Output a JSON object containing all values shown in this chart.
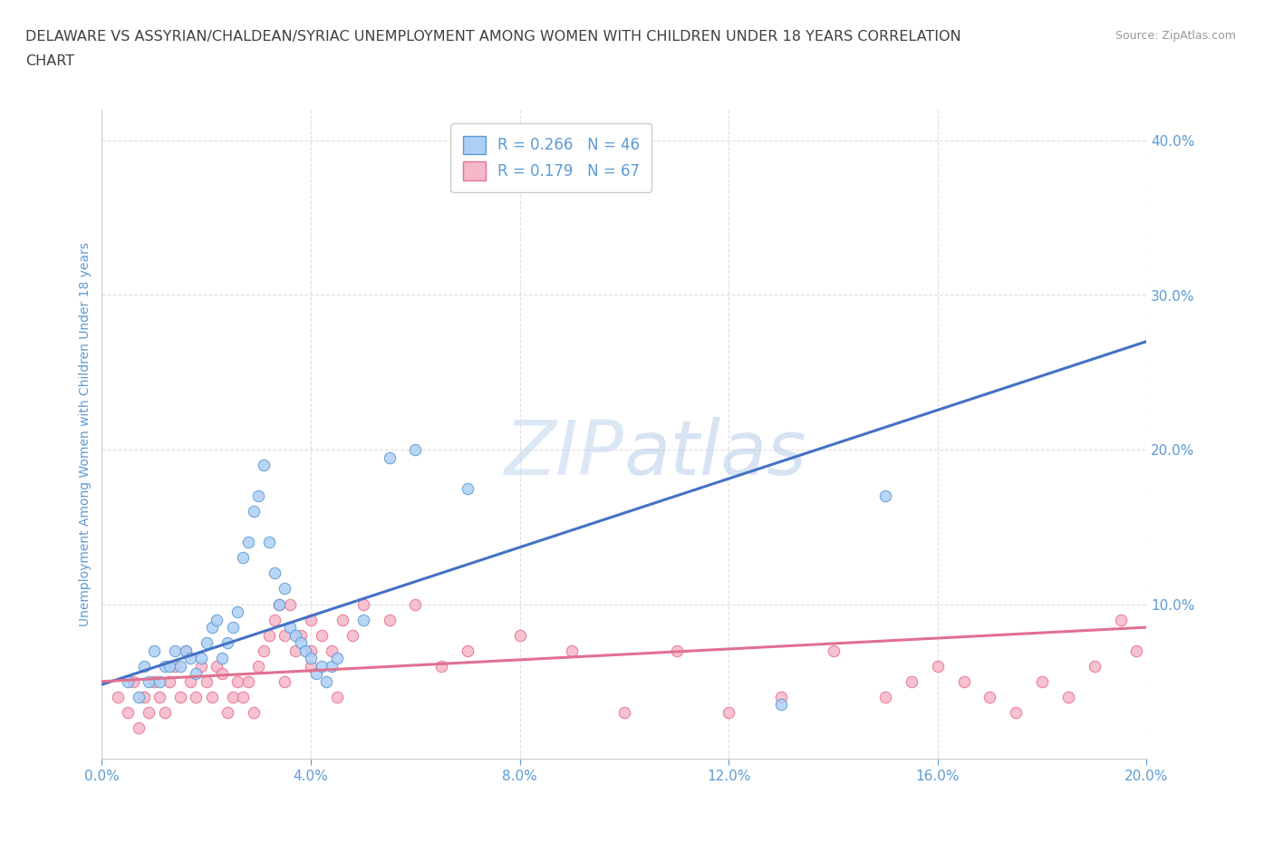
{
  "title_line1": "DELAWARE VS ASSYRIAN/CHALDEAN/SYRIAC UNEMPLOYMENT AMONG WOMEN WITH CHILDREN UNDER 18 YEARS CORRELATION",
  "title_line2": "CHART",
  "source": "Source: ZipAtlas.com",
  "ylabel_left": "Unemployment Among Women with Children Under 18 years",
  "xlim": [
    0.0,
    0.2
  ],
  "ylim": [
    0.0,
    0.42
  ],
  "x_ticks": [
    0.0,
    0.04,
    0.08,
    0.12,
    0.16,
    0.2
  ],
  "y_ticks_right": [
    0.1,
    0.2,
    0.3,
    0.4
  ],
  "legend_R1": "R = 0.266",
  "legend_N1": "N = 46",
  "legend_R2": "R = 0.179",
  "legend_N2": "N = 67",
  "color_delaware_fill": "#aecff5",
  "color_delaware_edge": "#5b9bd5",
  "color_assyrian_fill": "#f5b8c8",
  "color_assyrian_edge": "#e87090",
  "color_delaware_line": "#4472c4",
  "color_assyrian_line": "#e07090",
  "color_title": "#404040",
  "color_axis_text": "#5b9bd5",
  "color_source": "#999999",
  "color_grid": "#e0e0e0",
  "color_watermark": "#ccddf0",
  "delaware_x": [
    0.005,
    0.007,
    0.008,
    0.009,
    0.01,
    0.011,
    0.012,
    0.013,
    0.014,
    0.015,
    0.016,
    0.017,
    0.018,
    0.019,
    0.02,
    0.021,
    0.022,
    0.023,
    0.024,
    0.025,
    0.026,
    0.027,
    0.028,
    0.029,
    0.03,
    0.031,
    0.032,
    0.033,
    0.034,
    0.035,
    0.036,
    0.037,
    0.038,
    0.039,
    0.04,
    0.041,
    0.042,
    0.043,
    0.044,
    0.045,
    0.05,
    0.055,
    0.06,
    0.07,
    0.13,
    0.15
  ],
  "delaware_y": [
    0.05,
    0.04,
    0.06,
    0.05,
    0.07,
    0.05,
    0.06,
    0.06,
    0.07,
    0.06,
    0.07,
    0.065,
    0.055,
    0.065,
    0.075,
    0.085,
    0.09,
    0.065,
    0.075,
    0.085,
    0.095,
    0.13,
    0.14,
    0.16,
    0.17,
    0.19,
    0.14,
    0.12,
    0.1,
    0.11,
    0.085,
    0.08,
    0.075,
    0.07,
    0.065,
    0.055,
    0.06,
    0.05,
    0.06,
    0.065,
    0.09,
    0.195,
    0.2,
    0.175,
    0.035,
    0.17
  ],
  "assyrian_x": [
    0.003,
    0.005,
    0.006,
    0.007,
    0.008,
    0.009,
    0.01,
    0.011,
    0.012,
    0.013,
    0.014,
    0.015,
    0.016,
    0.017,
    0.018,
    0.019,
    0.02,
    0.021,
    0.022,
    0.023,
    0.024,
    0.025,
    0.026,
    0.027,
    0.028,
    0.029,
    0.03,
    0.031,
    0.032,
    0.033,
    0.034,
    0.035,
    0.036,
    0.037,
    0.038,
    0.04,
    0.042,
    0.044,
    0.046,
    0.048,
    0.05,
    0.055,
    0.06,
    0.065,
    0.07,
    0.08,
    0.09,
    0.1,
    0.11,
    0.12,
    0.13,
    0.14,
    0.15,
    0.155,
    0.16,
    0.165,
    0.17,
    0.175,
    0.18,
    0.185,
    0.19,
    0.195,
    0.198,
    0.04,
    0.04,
    0.035,
    0.045
  ],
  "assyrian_y": [
    0.04,
    0.03,
    0.05,
    0.02,
    0.04,
    0.03,
    0.05,
    0.04,
    0.03,
    0.05,
    0.06,
    0.04,
    0.07,
    0.05,
    0.04,
    0.06,
    0.05,
    0.04,
    0.06,
    0.055,
    0.03,
    0.04,
    0.05,
    0.04,
    0.05,
    0.03,
    0.06,
    0.07,
    0.08,
    0.09,
    0.1,
    0.08,
    0.1,
    0.07,
    0.08,
    0.09,
    0.08,
    0.07,
    0.09,
    0.08,
    0.1,
    0.09,
    0.1,
    0.06,
    0.07,
    0.08,
    0.07,
    0.03,
    0.07,
    0.03,
    0.04,
    0.07,
    0.04,
    0.05,
    0.06,
    0.05,
    0.04,
    0.03,
    0.05,
    0.04,
    0.06,
    0.09,
    0.07,
    0.07,
    0.06,
    0.05,
    0.04
  ],
  "del_trend_x0": 0.0,
  "del_trend_y0": 0.048,
  "del_trend_x1": 0.2,
  "del_trend_y1": 0.27,
  "ass_trend_x0": 0.0,
  "ass_trend_y0": 0.05,
  "ass_trend_x1": 0.2,
  "ass_trend_y1": 0.085
}
